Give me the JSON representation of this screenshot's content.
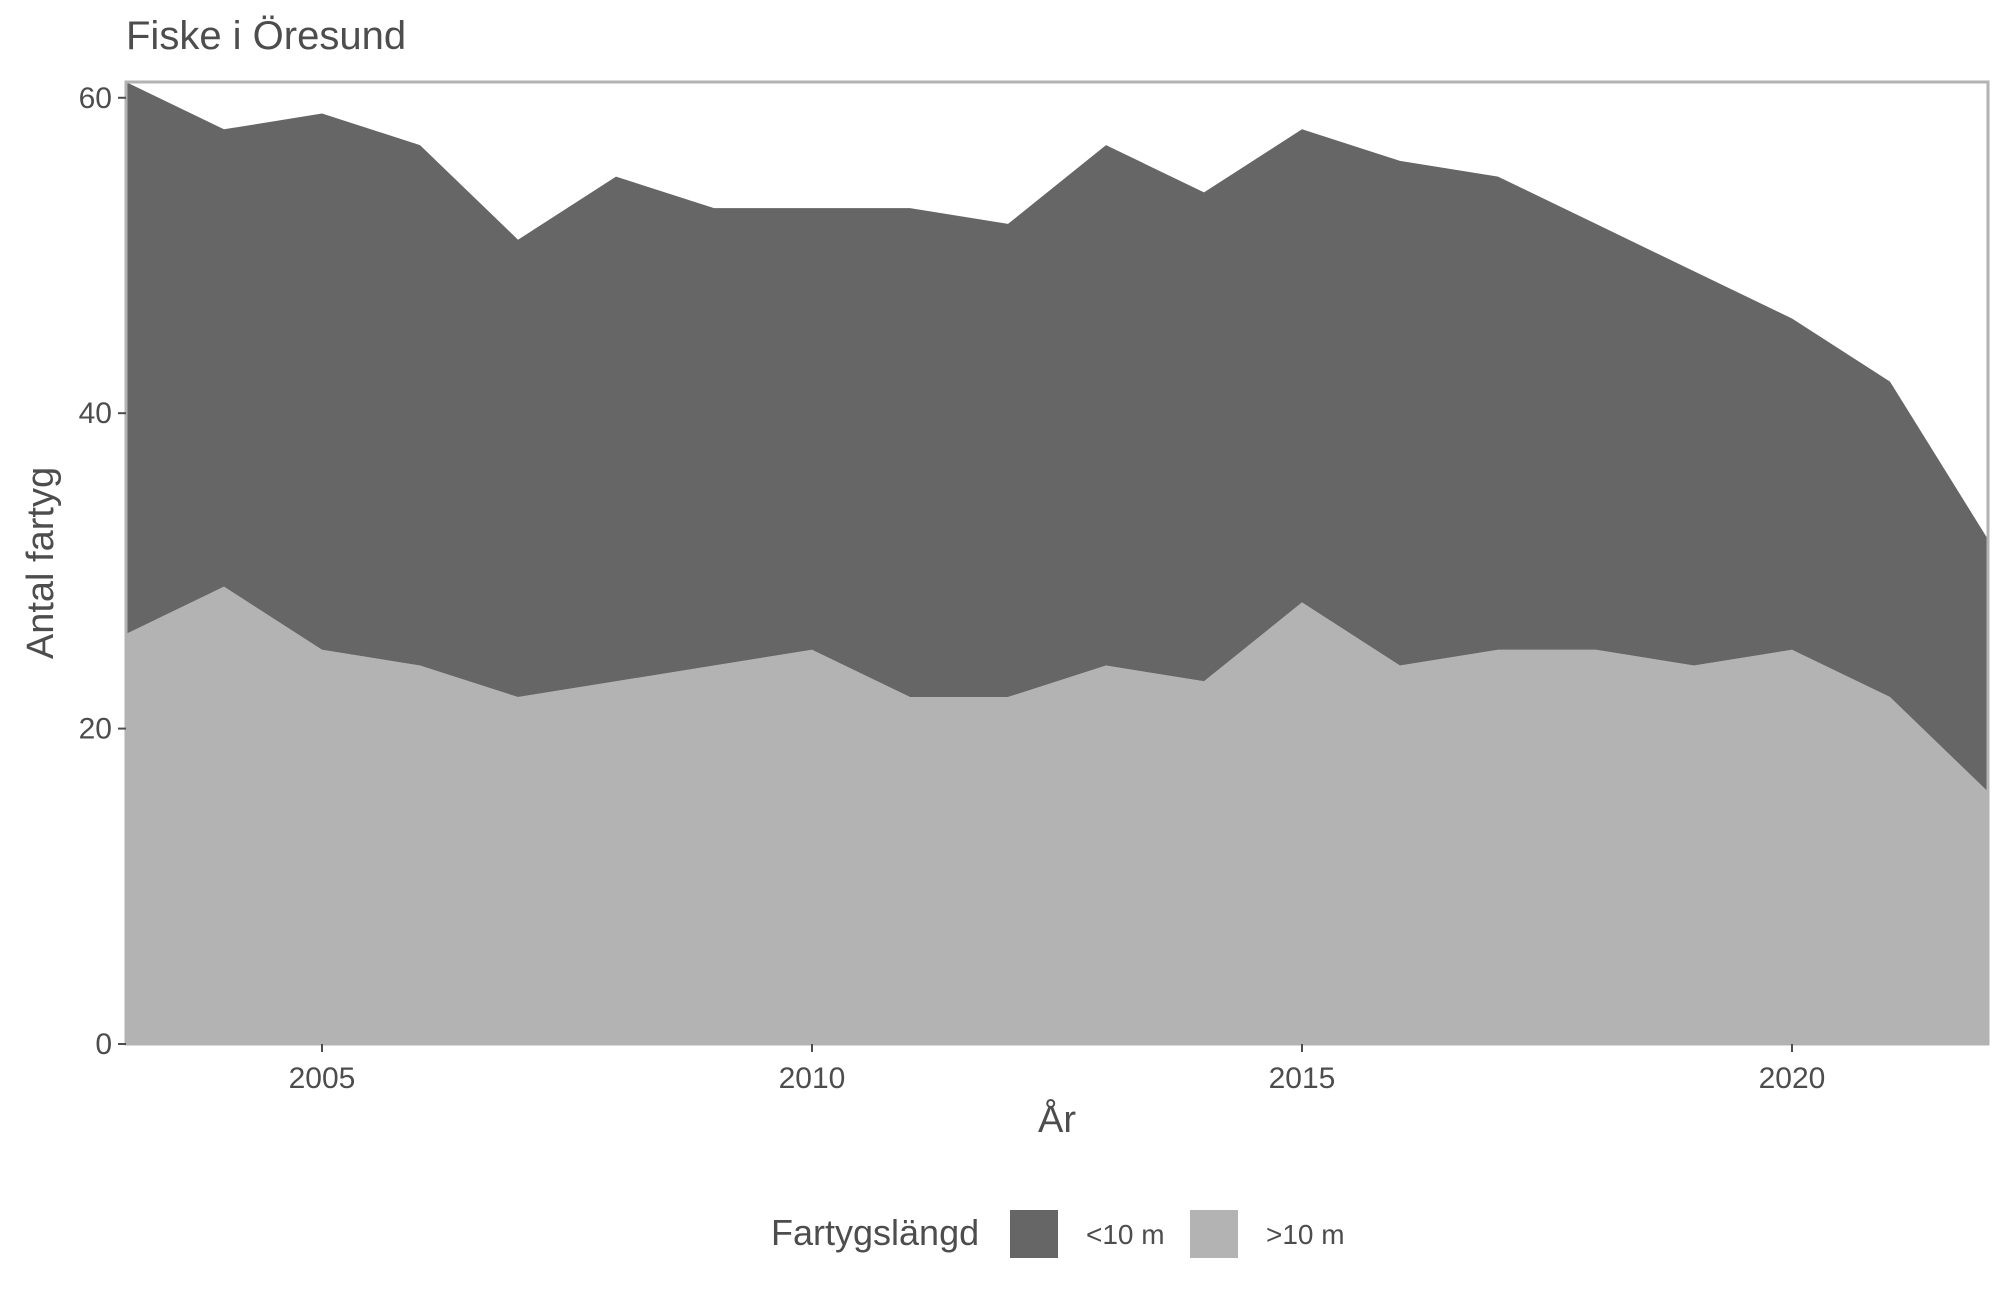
{
  "chart_data": {
    "type": "area",
    "stacked": true,
    "title": "Fiske i Öresund",
    "xlabel": "År",
    "ylabel": "Antal fartyg",
    "xlim": [
      2003,
      2022
    ],
    "ylim": [
      0,
      61
    ],
    "x_ticks": [
      2005,
      2010,
      2015,
      2020
    ],
    "y_ticks": [
      0,
      20,
      40,
      60
    ],
    "grid": false,
    "legend": {
      "title": "Fartygslängd",
      "position": "bottom",
      "entries": [
        {
          "label": "<10 m",
          "color": "#666666"
        },
        {
          "label": ">10 m",
          "color": "#b3b3b3"
        }
      ]
    },
    "x": [
      2003,
      2004,
      2005,
      2006,
      2007,
      2008,
      2009,
      2010,
      2011,
      2012,
      2013,
      2014,
      2015,
      2016,
      2017,
      2018,
      2019,
      2020,
      2021,
      2022
    ],
    "series": [
      {
        "name": ">10 m",
        "color": "#b3b3b3",
        "values": [
          26,
          29,
          25,
          24,
          22,
          23,
          24,
          25,
          22,
          22,
          24,
          23,
          28,
          24,
          25,
          25,
          24,
          25,
          22,
          16
        ]
      },
      {
        "name": "<10 m",
        "color": "#666666",
        "values": [
          35,
          29,
          34,
          33,
          29,
          32,
          29,
          28,
          31,
          30,
          33,
          31,
          30,
          32,
          30,
          27,
          25,
          21,
          20,
          16
        ]
      }
    ],
    "panel_border_color": "#b3b3b3",
    "text_color": "#4d4d4d"
  }
}
